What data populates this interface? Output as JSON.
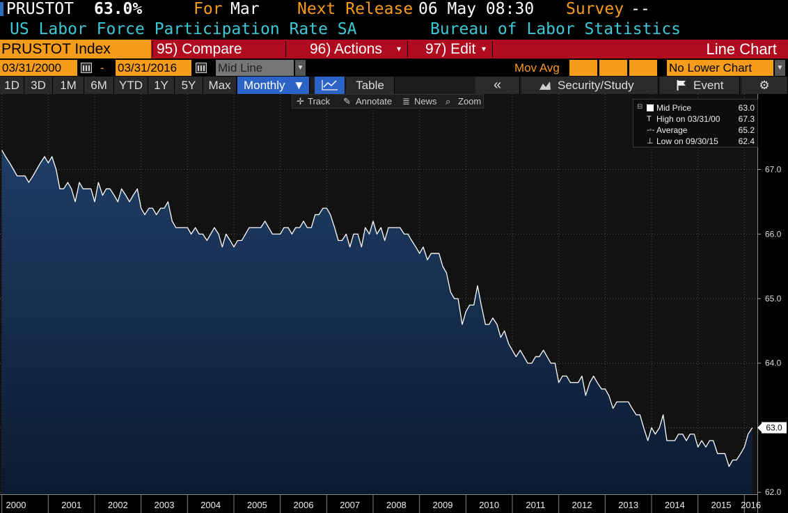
{
  "header": {
    "ticker": "PRUSTOT",
    "value": "63.0%",
    "for_label": "For",
    "for_value": "Mar",
    "next_release_label": "Next Release",
    "next_release_value": "06 May 08:30",
    "survey_label": "Survey",
    "survey_value": "--",
    "description": "US Labor Force Participation Rate SA",
    "source": "Bureau of Labor Statistics"
  },
  "menu": {
    "security": "PRUSTOT Index",
    "compare": "95) Compare",
    "actions": "96) Actions",
    "edit": "97) Edit",
    "chart_type": "Line Chart"
  },
  "controls": {
    "start_date": "03/31/2000",
    "dash": "-",
    "end_date": "03/31/2016",
    "style": "Mid Line",
    "mov_avg_label": "Mov Avg",
    "lower_chart": "No Lower Chart"
  },
  "periods": [
    "1D",
    "3D",
    "1M",
    "6M",
    "YTD",
    "1Y",
    "5Y",
    "Max"
  ],
  "frequency": "Monthly",
  "toolbar": {
    "table": "Table",
    "collapse": "«",
    "security_study": "Security/Study",
    "event": "Event"
  },
  "chart_tools": [
    "Track",
    "Annotate",
    "News",
    "Zoom"
  ],
  "legend": [
    {
      "name": "Mid Price",
      "value": "63.0"
    },
    {
      "name": "High on 03/31/00",
      "value": "67.3"
    },
    {
      "name": "Average",
      "value": "65.2"
    },
    {
      "name": "Low on 09/30/15",
      "value": "62.4"
    }
  ],
  "colors": {
    "accent_orange": "#f59c1a",
    "menu_red": "#b10b1f",
    "line": "#ffffff",
    "area_top": "#1f3e66",
    "area_bottom": "#0b1a30",
    "header_cyan": "#3cc9d6"
  },
  "chart_data": {
    "type": "area",
    "title": "",
    "xlabel": "",
    "ylabel": "",
    "x_ticks": [
      "2000",
      "2001",
      "2002",
      "2003",
      "2004",
      "2005",
      "2006",
      "2007",
      "2008",
      "2009",
      "2010",
      "2011",
      "2012",
      "2013",
      "2014",
      "2015",
      "2016"
    ],
    "y_ticks": [
      62.0,
      63.0,
      64.0,
      65.0,
      66.0,
      67.0
    ],
    "ylim": [
      61.97,
      68.17
    ],
    "xlim": [
      1999.96,
      2016.28
    ],
    "last_value_label": "63.0",
    "series": [
      {
        "values": [
          [
            2000.0,
            67.3
          ],
          [
            2000.08,
            67.2
          ],
          [
            2000.17,
            67.1
          ],
          [
            2000.25,
            67.0
          ],
          [
            2000.33,
            66.9
          ],
          [
            2000.42,
            66.9
          ],
          [
            2000.5,
            66.9
          ],
          [
            2000.58,
            66.8
          ],
          [
            2000.67,
            66.9
          ],
          [
            2000.75,
            67.0
          ],
          [
            2000.83,
            67.1
          ],
          [
            2000.92,
            67.2
          ],
          [
            2001.0,
            67.1
          ],
          [
            2001.08,
            67.2
          ],
          [
            2001.17,
            67.0
          ],
          [
            2001.25,
            66.7
          ],
          [
            2001.33,
            66.7
          ],
          [
            2001.42,
            66.8
          ],
          [
            2001.5,
            66.7
          ],
          [
            2001.58,
            66.5
          ],
          [
            2001.67,
            66.8
          ],
          [
            2001.75,
            66.7
          ],
          [
            2001.83,
            66.7
          ],
          [
            2001.92,
            66.7
          ],
          [
            2002.0,
            66.5
          ],
          [
            2002.08,
            66.8
          ],
          [
            2002.17,
            66.6
          ],
          [
            2002.25,
            66.7
          ],
          [
            2002.33,
            66.7
          ],
          [
            2002.42,
            66.6
          ],
          [
            2002.5,
            66.5
          ],
          [
            2002.58,
            66.7
          ],
          [
            2002.67,
            66.6
          ],
          [
            2002.75,
            66.5
          ],
          [
            2002.83,
            66.6
          ],
          [
            2002.92,
            66.7
          ],
          [
            2003.0,
            66.4
          ],
          [
            2003.08,
            66.3
          ],
          [
            2003.17,
            66.4
          ],
          [
            2003.25,
            66.4
          ],
          [
            2003.33,
            66.3
          ],
          [
            2003.42,
            66.4
          ],
          [
            2003.5,
            66.4
          ],
          [
            2003.58,
            66.5
          ],
          [
            2003.67,
            66.2
          ],
          [
            2003.75,
            66.1
          ],
          [
            2003.83,
            66.1
          ],
          [
            2003.92,
            66.1
          ],
          [
            2004.0,
            66.1
          ],
          [
            2004.08,
            66.0
          ],
          [
            2004.17,
            66.1
          ],
          [
            2004.25,
            66.0
          ],
          [
            2004.33,
            66.0
          ],
          [
            2004.42,
            65.9
          ],
          [
            2004.5,
            66.0
          ],
          [
            2004.58,
            66.1
          ],
          [
            2004.67,
            66.0
          ],
          [
            2004.75,
            65.8
          ],
          [
            2004.83,
            66.0
          ],
          [
            2004.92,
            65.9
          ],
          [
            2005.0,
            65.8
          ],
          [
            2005.08,
            65.9
          ],
          [
            2005.17,
            65.9
          ],
          [
            2005.25,
            66.0
          ],
          [
            2005.33,
            66.1
          ],
          [
            2005.42,
            66.1
          ],
          [
            2005.5,
            66.1
          ],
          [
            2005.58,
            66.1
          ],
          [
            2005.67,
            66.2
          ],
          [
            2005.75,
            66.1
          ],
          [
            2005.83,
            66.0
          ],
          [
            2005.92,
            66.0
          ],
          [
            2006.0,
            66.0
          ],
          [
            2006.08,
            66.1
          ],
          [
            2006.17,
            66.1
          ],
          [
            2006.25,
            66.0
          ],
          [
            2006.33,
            66.1
          ],
          [
            2006.42,
            66.1
          ],
          [
            2006.5,
            66.2
          ],
          [
            2006.58,
            66.1
          ],
          [
            2006.67,
            66.1
          ],
          [
            2006.75,
            66.3
          ],
          [
            2006.83,
            66.3
          ],
          [
            2006.92,
            66.4
          ],
          [
            2007.0,
            66.4
          ],
          [
            2007.08,
            66.3
          ],
          [
            2007.17,
            66.1
          ],
          [
            2007.25,
            65.9
          ],
          [
            2007.33,
            65.9
          ],
          [
            2007.42,
            66.0
          ],
          [
            2007.5,
            65.8
          ],
          [
            2007.58,
            66.0
          ],
          [
            2007.67,
            66.0
          ],
          [
            2007.75,
            65.8
          ],
          [
            2007.83,
            66.1
          ],
          [
            2007.92,
            66.0
          ],
          [
            2008.0,
            66.2
          ],
          [
            2008.08,
            66.0
          ],
          [
            2008.17,
            66.1
          ],
          [
            2008.25,
            65.9
          ],
          [
            2008.33,
            66.1
          ],
          [
            2008.42,
            66.1
          ],
          [
            2008.5,
            66.1
          ],
          [
            2008.58,
            66.1
          ],
          [
            2008.67,
            66.0
          ],
          [
            2008.75,
            66.0
          ],
          [
            2008.83,
            65.9
          ],
          [
            2008.92,
            65.8
          ],
          [
            2009.0,
            65.7
          ],
          [
            2009.08,
            65.8
          ],
          [
            2009.17,
            65.6
          ],
          [
            2009.25,
            65.7
          ],
          [
            2009.33,
            65.7
          ],
          [
            2009.42,
            65.7
          ],
          [
            2009.5,
            65.5
          ],
          [
            2009.58,
            65.4
          ],
          [
            2009.67,
            65.1
          ],
          [
            2009.75,
            65.0
          ],
          [
            2009.83,
            65.0
          ],
          [
            2009.92,
            64.6
          ],
          [
            2010.0,
            64.8
          ],
          [
            2010.08,
            64.9
          ],
          [
            2010.17,
            64.9
          ],
          [
            2010.25,
            65.2
          ],
          [
            2010.33,
            64.9
          ],
          [
            2010.42,
            64.6
          ],
          [
            2010.5,
            64.6
          ],
          [
            2010.58,
            64.7
          ],
          [
            2010.67,
            64.6
          ],
          [
            2010.75,
            64.4
          ],
          [
            2010.83,
            64.5
          ],
          [
            2010.92,
            64.3
          ],
          [
            2011.0,
            64.2
          ],
          [
            2011.08,
            64.1
          ],
          [
            2011.17,
            64.2
          ],
          [
            2011.25,
            64.1
          ],
          [
            2011.33,
            64.0
          ],
          [
            2011.42,
            64.0
          ],
          [
            2011.5,
            64.1
          ],
          [
            2011.58,
            64.1
          ],
          [
            2011.67,
            64.2
          ],
          [
            2011.75,
            64.1
          ],
          [
            2011.83,
            64.0
          ],
          [
            2011.92,
            64.0
          ],
          [
            2012.0,
            63.7
          ],
          [
            2012.08,
            63.8
          ],
          [
            2012.17,
            63.8
          ],
          [
            2012.25,
            63.7
          ],
          [
            2012.33,
            63.7
          ],
          [
            2012.42,
            63.7
          ],
          [
            2012.5,
            63.8
          ],
          [
            2012.58,
            63.5
          ],
          [
            2012.67,
            63.7
          ],
          [
            2012.75,
            63.8
          ],
          [
            2012.83,
            63.7
          ],
          [
            2012.92,
            63.6
          ],
          [
            2013.0,
            63.6
          ],
          [
            2013.08,
            63.5
          ],
          [
            2013.17,
            63.3
          ],
          [
            2013.25,
            63.4
          ],
          [
            2013.33,
            63.4
          ],
          [
            2013.42,
            63.4
          ],
          [
            2013.5,
            63.4
          ],
          [
            2013.58,
            63.3
          ],
          [
            2013.67,
            63.2
          ],
          [
            2013.75,
            63.2
          ],
          [
            2013.83,
            63.0
          ],
          [
            2013.92,
            62.8
          ],
          [
            2014.0,
            63.0
          ],
          [
            2014.08,
            62.9
          ],
          [
            2014.17,
            63.0
          ],
          [
            2014.25,
            63.2
          ],
          [
            2014.33,
            62.8
          ],
          [
            2014.42,
            62.8
          ],
          [
            2014.5,
            62.8
          ],
          [
            2014.58,
            62.9
          ],
          [
            2014.67,
            62.9
          ],
          [
            2014.75,
            62.8
          ],
          [
            2014.83,
            62.9
          ],
          [
            2014.92,
            62.9
          ],
          [
            2015.0,
            62.7
          ],
          [
            2015.08,
            62.8
          ],
          [
            2015.17,
            62.7
          ],
          [
            2015.25,
            62.8
          ],
          [
            2015.33,
            62.8
          ],
          [
            2015.42,
            62.6
          ],
          [
            2015.5,
            62.6
          ],
          [
            2015.58,
            62.6
          ],
          [
            2015.67,
            62.4
          ],
          [
            2015.75,
            62.5
          ],
          [
            2015.83,
            62.5
          ],
          [
            2015.92,
            62.6
          ],
          [
            2016.0,
            62.7
          ],
          [
            2016.08,
            62.9
          ],
          [
            2016.17,
            63.0
          ]
        ]
      }
    ]
  }
}
